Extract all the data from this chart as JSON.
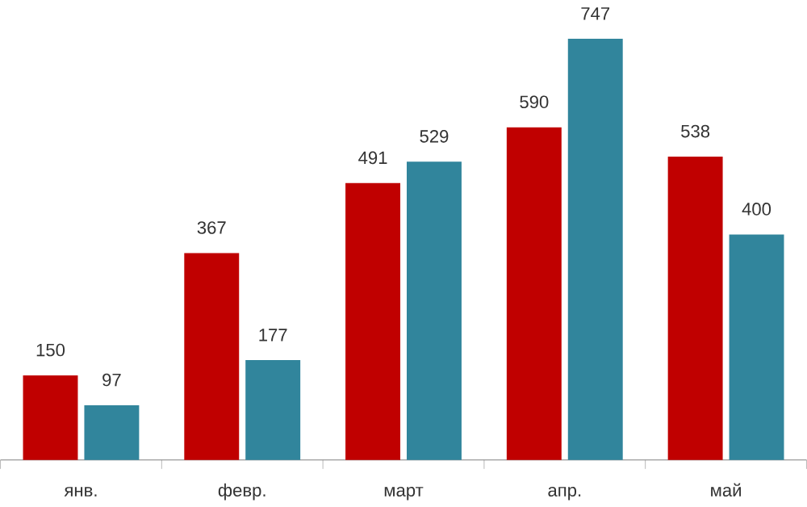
{
  "chart_data": {
    "type": "bar",
    "categories": [
      "янв.",
      "февр.",
      "март",
      "апр.",
      "май"
    ],
    "series": [
      {
        "color": "#c00000",
        "values": [
          150,
          367,
          491,
          590,
          538
        ]
      },
      {
        "color": "#31859c",
        "values": [
          97,
          177,
          529,
          747,
          400
        ]
      }
    ],
    "data_labels": true
  }
}
